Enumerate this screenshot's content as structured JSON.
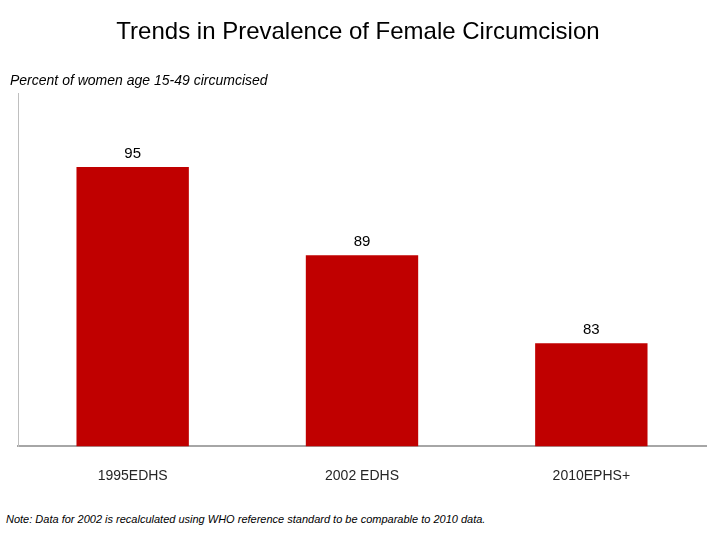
{
  "chart_data": {
    "type": "bar",
    "title": "Trends in Prevalence of Female Circumcision",
    "subtitle": "Percent of women age 15-49 circumcised",
    "categories": [
      "1995EDHS",
      "2002 EDHS",
      "2010EPHS+"
    ],
    "values": [
      95,
      89,
      83
    ],
    "color": "#c00000",
    "ylim": [
      76,
      100
    ],
    "grid": false,
    "data_labels": true,
    "tick_labels": "x",
    "annotations": [
      "Note: Data for 2002 is recalculated using WHO reference standard to be comparable to 2010 data."
    ]
  }
}
